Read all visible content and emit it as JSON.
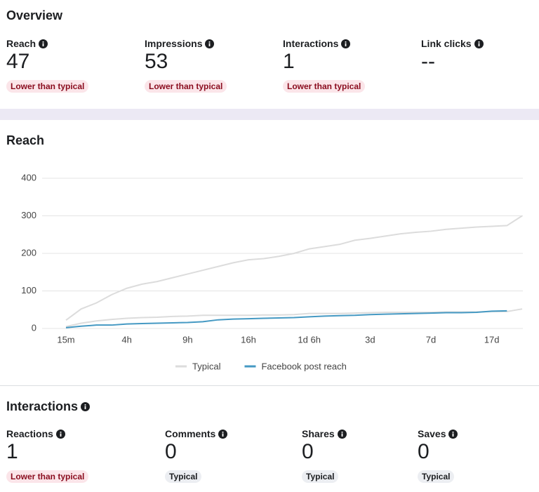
{
  "overview": {
    "title": "Overview",
    "metrics": [
      {
        "label": "Reach",
        "value": "47",
        "badge": "Lower than typical"
      },
      {
        "label": "Impressions",
        "value": "53",
        "badge": "Lower than typical"
      },
      {
        "label": "Interactions",
        "value": "1",
        "badge": "Lower than typical"
      },
      {
        "label": "Link clicks",
        "value": "--"
      }
    ]
  },
  "chart_data": {
    "type": "line",
    "title": "Reach",
    "categories": [
      "15m",
      null,
      null,
      null,
      "4h",
      null,
      null,
      null,
      "9h",
      null,
      null,
      null,
      "16h",
      null,
      null,
      null,
      "1d 6h",
      null,
      null,
      null,
      "3d",
      null,
      null,
      null,
      "7d",
      null,
      null,
      null,
      "17d",
      null,
      null
    ],
    "series": [
      {
        "name": "Typical",
        "color": "#dcdcdc",
        "values": [
          22,
          52,
          68,
          90,
          107,
          118,
          125,
          135,
          145,
          155,
          165,
          175,
          183,
          186,
          192,
          200,
          212,
          218,
          224,
          235,
          240,
          246,
          252,
          256,
          259,
          264,
          267,
          270,
          272,
          274,
          300
        ],
        "lower_values": [
          5,
          14,
          20,
          24,
          27,
          29,
          30,
          32,
          33,
          35,
          35,
          35,
          35,
          36,
          36,
          37,
          40,
          40,
          40,
          41,
          42,
          43,
          43,
          43,
          43,
          44,
          44,
          44,
          45,
          45,
          52
        ]
      },
      {
        "name": "Facebook post reach",
        "color": "#4599c3",
        "values": [
          2,
          6,
          9,
          9,
          12,
          13,
          14,
          15,
          16,
          18,
          23,
          25,
          26,
          27,
          28,
          29,
          31,
          33,
          34,
          35,
          37,
          38,
          39,
          40,
          41,
          42,
          42,
          43,
          46,
          47,
          null
        ]
      }
    ],
    "ylim": [
      0,
      400
    ],
    "yticks": [
      0,
      100,
      200,
      300,
      400
    ],
    "grid": true
  },
  "interactions": {
    "title": "Interactions",
    "metrics": [
      {
        "label": "Reactions",
        "value": "1",
        "badge": "Lower than typical"
      },
      {
        "label": "Comments",
        "value": "0",
        "badge": "Typical"
      },
      {
        "label": "Shares",
        "value": "0",
        "badge": "Typical"
      },
      {
        "label": "Saves",
        "value": "0",
        "badge": "Typical"
      }
    ]
  }
}
